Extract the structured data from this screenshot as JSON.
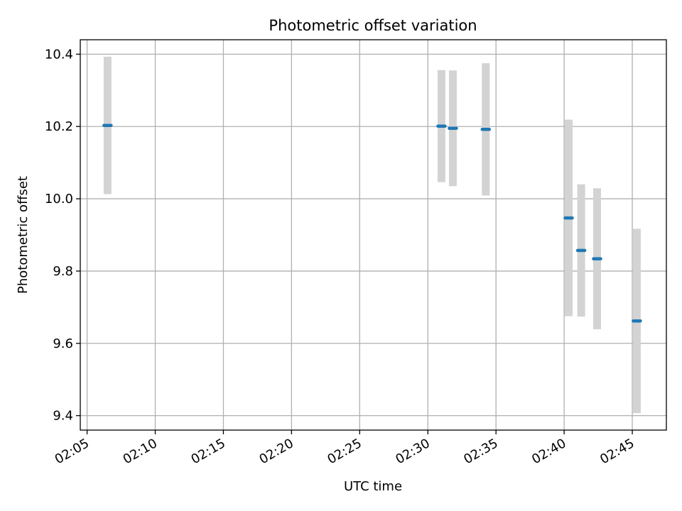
{
  "chart_data": {
    "type": "scatter",
    "title": "Photometric offset variation",
    "xlabel": "UTC time",
    "ylabel": "Photometric offset",
    "grid": true,
    "colors": {
      "marker": "#1f77b4",
      "errorbar": "#d3d3d3",
      "grid": "#b0b0b0"
    },
    "x_ticks": [
      "02:05",
      "02:10",
      "02:15",
      "02:20",
      "02:25",
      "02:30",
      "02:35",
      "02:40",
      "02:45"
    ],
    "y_ticks": [
      "9.4",
      "9.6",
      "9.8",
      "10.0",
      "10.2",
      "10.4"
    ],
    "xlim": [
      "02:04:30",
      "02:47:30"
    ],
    "ylim": [
      9.36,
      10.44
    ],
    "points": [
      {
        "time": "02:06:30",
        "y": 10.203,
        "yerr": 0.19
      },
      {
        "time": "02:31:00",
        "y": 10.201,
        "yerr": 0.155
      },
      {
        "time": "02:31:50",
        "y": 10.195,
        "yerr": 0.16
      },
      {
        "time": "02:34:15",
        "y": 10.192,
        "yerr": 0.183
      },
      {
        "time": "02:40:20",
        "y": 9.947,
        "yerr": 0.272
      },
      {
        "time": "02:41:15",
        "y": 9.857,
        "yerr": 0.183
      },
      {
        "time": "02:42:25",
        "y": 9.834,
        "yerr": 0.195
      },
      {
        "time": "02:45:20",
        "y": 9.662,
        "yerr": 0.255
      }
    ]
  }
}
